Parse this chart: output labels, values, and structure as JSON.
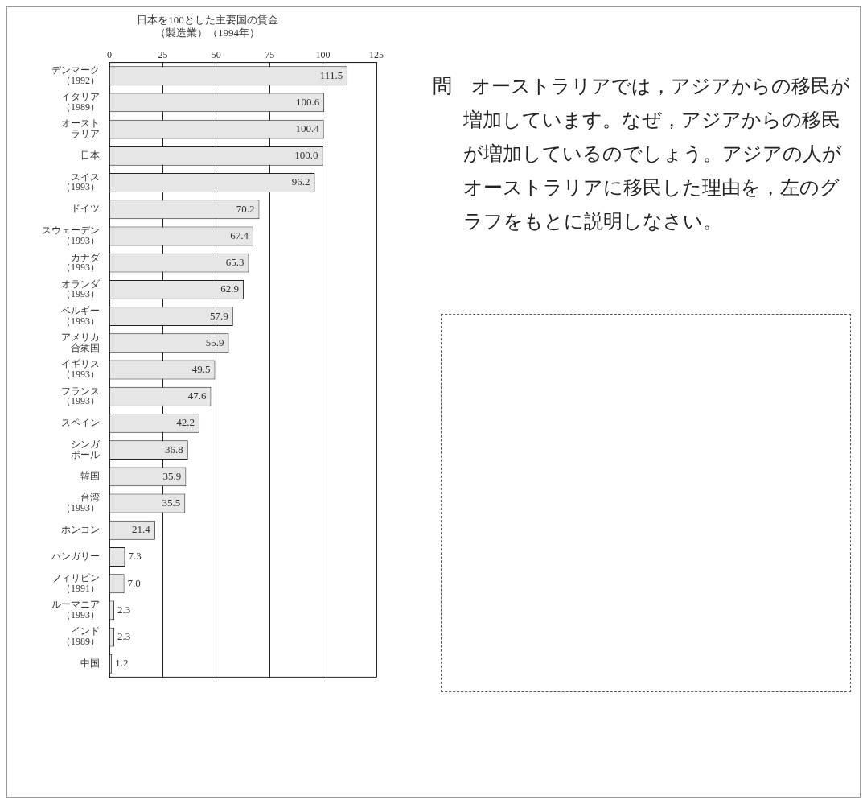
{
  "chart_data": {
    "type": "bar",
    "orientation": "horizontal",
    "title": [
      "日本を100とした主要国の賃金",
      "（製造業）（1994年）"
    ],
    "categories": [
      "デンマーク（1992）",
      "イタリア（1989）",
      "オーストラリア",
      "日本",
      "スイス（1993）",
      "ドイツ",
      "スウェーデン（1993）",
      "カナダ（1993）",
      "オランダ（1993）",
      "ベルギー（1993）",
      "アメリカ合衆国",
      "イギリス（1993）",
      "フランス（1993）",
      "スペイン",
      "シンガポール",
      "韓国",
      "台湾（1993）",
      "ホンコン",
      "ハンガリー",
      "フィリピン（1991）",
      "ルーマニア（1993）",
      "インド（1989）",
      "中国"
    ],
    "values": [
      111.5,
      100.6,
      100.4,
      100.0,
      96.2,
      70.2,
      67.4,
      65.3,
      62.9,
      57.9,
      55.9,
      49.5,
      47.6,
      42.2,
      36.8,
      35.9,
      35.5,
      21.4,
      7.3,
      7.0,
      2.3,
      2.3,
      1.2
    ],
    "value_labels": [
      "111.5",
      "100.6",
      "100.4",
      "100.0",
      "96.2",
      "70.2",
      "67.4",
      "65.3",
      "62.9",
      "57.9",
      "55.9",
      "49.5",
      "47.6",
      "42.2",
      "36.8",
      "35.9",
      "35.5",
      "21.4",
      "7.3",
      "7.0",
      "2.3",
      "2.3",
      "1.2"
    ],
    "color": "#e6e6e6",
    "xlim": [
      0,
      125
    ],
    "xticks": [
      0,
      25,
      50,
      75,
      100,
      125
    ],
    "grid": "x",
    "annotations": [
      "問　オーストラリアでは，アジアからの移民が増加しています。なぜ，アジアからの移民が増加しているのでしょう。アジアの人がオーストラリアに移民した理由を，左のグラフをもとに説明しなさい。"
    ]
  }
}
